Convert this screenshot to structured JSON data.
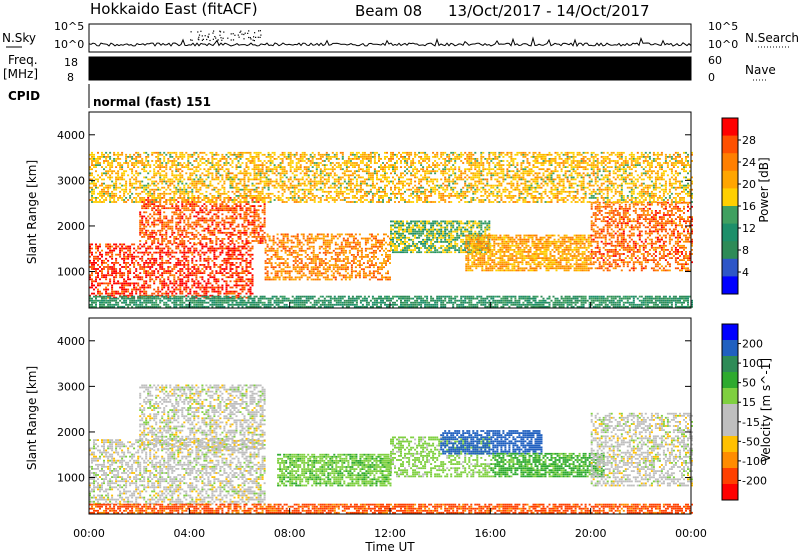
{
  "header": {
    "station": "Hokkaido East (fitACF)",
    "beam": "Beam 08",
    "date_range": "13/Oct/2017 - 14/Oct/2017"
  },
  "strip": {
    "nsky_label": "N.Sky",
    "nsearch_label": "N.Search",
    "count_ticks": [
      "10^5",
      "10^0"
    ],
    "freq_label": "Freq.",
    "freq_unit": "[MHz]",
    "freq_ticks": [
      "18",
      "8"
    ],
    "nave_label": "Nave",
    "nave_ticks": [
      "60",
      "0"
    ],
    "cpid_label": "CPID",
    "cpid_value": "normal (fast) 151"
  },
  "colors": {
    "power": [
      "#0000ff",
      "#2e56c7",
      "#2e8b57",
      "#1d8f6a",
      "#40a060",
      "#ffd000",
      "#ffa500",
      "#ff7f00",
      "#ff5000",
      "#ff0000"
    ],
    "velocity": [
      "#ff0000",
      "#ff4000",
      "#ff8c00",
      "#ffc000",
      "#bfbfbf",
      "#bfbfbf",
      "#7fd040",
      "#2eaa2e",
      "#2e8b57",
      "#2060c0",
      "#0000ff"
    ]
  },
  "chart_data": [
    {
      "type": "heatmap",
      "panel": "power",
      "ylabel": "Slant Range [km]",
      "ylim": [
        200,
        4500
      ],
      "xlim": [
        0,
        24
      ],
      "yticks": [
        "4000",
        "3000",
        "2000",
        "1000"
      ],
      "colorbar": {
        "label": "Power [dB]",
        "ticks": [
          "28",
          "24",
          "20",
          "16",
          "12",
          "8",
          "4"
        ]
      },
      "echo_regions": [
        {
          "t0": 0.0,
          "t1": 6.5,
          "r0": 400,
          "r1": 1600,
          "value": 27
        },
        {
          "t0": 2.0,
          "t1": 7.0,
          "r0": 1600,
          "r1": 2600,
          "value": 25
        },
        {
          "t0": 7.0,
          "t1": 12.0,
          "r0": 800,
          "r1": 1800,
          "value": 22
        },
        {
          "t0": 12.0,
          "t1": 16.0,
          "r0": 1400,
          "r1": 2100,
          "value": 14
        },
        {
          "t0": 15.0,
          "t1": 20.0,
          "r0": 1000,
          "r1": 1800,
          "value": 20
        },
        {
          "t0": 20.0,
          "t1": 24.0,
          "r0": 1000,
          "r1": 2500,
          "value": 24
        },
        {
          "t0": 0.0,
          "t1": 24.0,
          "r0": 200,
          "r1": 450,
          "value": 10
        },
        {
          "t0": 0.0,
          "t1": 24.0,
          "r0": 2500,
          "r1": 3600,
          "value": 18
        }
      ]
    },
    {
      "type": "heatmap",
      "panel": "velocity",
      "ylabel": "Slant Range [km]",
      "ylim": [
        200,
        4500
      ],
      "xlim": [
        0,
        24
      ],
      "yticks": [
        "4000",
        "3000",
        "2000",
        "1000"
      ],
      "colorbar": {
        "label": "Velocity [m s^-1]",
        "ticks": [
          "200",
          "100",
          "50",
          "15",
          "-15",
          "-50",
          "-100",
          "-200"
        ]
      },
      "echo_regions": [
        {
          "t0": 0.0,
          "t1": 7.0,
          "r0": 400,
          "r1": 1800,
          "value": 0
        },
        {
          "t0": 2.0,
          "t1": 7.0,
          "r0": 1600,
          "r1": 3000,
          "value": 0
        },
        {
          "t0": 7.5,
          "t1": 12.0,
          "r0": 800,
          "r1": 1500,
          "value": 40
        },
        {
          "t0": 12.0,
          "t1": 16.0,
          "r0": 1000,
          "r1": 1900,
          "value": 30
        },
        {
          "t0": 14.0,
          "t1": 18.0,
          "r0": 1500,
          "r1": 2000,
          "value": 180
        },
        {
          "t0": 16.0,
          "t1": 20.5,
          "r0": 1000,
          "r1": 1500,
          "value": 60
        },
        {
          "t0": 20.0,
          "t1": 24.0,
          "r0": 800,
          "r1": 2400,
          "value": 0
        },
        {
          "t0": 0.0,
          "t1": 24.0,
          "r0": 200,
          "r1": 400,
          "value": -60
        }
      ]
    }
  ],
  "xaxis": {
    "label": "Time UT",
    "ticks": [
      "00:00",
      "04:00",
      "08:00",
      "12:00",
      "16:00",
      "20:00",
      "00:00"
    ]
  }
}
